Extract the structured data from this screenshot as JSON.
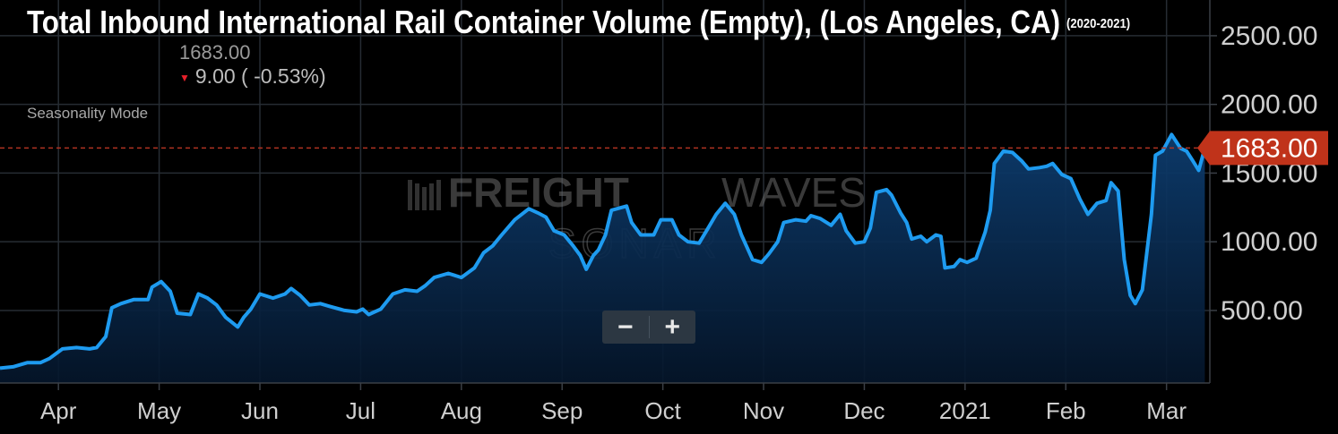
{
  "chart_data": {
    "type": "line",
    "title": "Total Inbound International Rail Container Volume (Empty), (Los Angeles, CA)",
    "period": "(2020-2021)",
    "header_value": "1683.00",
    "change": "9.00 ( -0.53%)",
    "mode": "Seasonality Mode",
    "watermark": {
      "brand_bold": "FREIGHT",
      "brand_light": "WAVES",
      "product": "SONAR"
    },
    "zoom_out": "−",
    "zoom_in": "+",
    "color": "#1e9bf0",
    "last": {
      "value": 1683,
      "label": "1683.00"
    },
    "xlim": [
      3.42,
      15.43
    ],
    "xticks": [
      {
        "value": 4,
        "label": "Apr"
      },
      {
        "value": 5,
        "label": "May"
      },
      {
        "value": 6,
        "label": "Jun"
      },
      {
        "value": 7,
        "label": "Jul"
      },
      {
        "value": 8,
        "label": "Aug"
      },
      {
        "value": 9,
        "label": "Sep"
      },
      {
        "value": 10,
        "label": "Oct"
      },
      {
        "value": 11,
        "label": "Nov"
      },
      {
        "value": 12,
        "label": "Dec"
      },
      {
        "value": 13,
        "label": "2021"
      },
      {
        "value": 14,
        "label": "Feb"
      },
      {
        "value": 15,
        "label": "Mar"
      }
    ],
    "ylim": [
      -28,
      2760
    ],
    "yticks": [
      {
        "value": 500,
        "label": "500.00"
      },
      {
        "value": 1000,
        "label": "1000.00"
      },
      {
        "value": 1500,
        "label": "1500.00"
      },
      {
        "value": 2000,
        "label": "2000.00"
      },
      {
        "value": 2500,
        "label": "2500.00"
      }
    ],
    "grid": true,
    "x": [
      3.42,
      3.55,
      3.69,
      3.82,
      3.91,
      4.04,
      4.18,
      4.31,
      4.38,
      4.47,
      4.53,
      4.62,
      4.75,
      4.89,
      4.93,
      5.02,
      5.11,
      5.18,
      5.31,
      5.39,
      5.48,
      5.57,
      5.66,
      5.78,
      5.84,
      5.91,
      6.0,
      6.13,
      6.25,
      6.31,
      6.4,
      6.49,
      6.6,
      6.69,
      6.84,
      6.96,
      7.02,
      7.08,
      7.2,
      7.32,
      7.44,
      7.56,
      7.64,
      7.73,
      7.87,
      8.0,
      8.13,
      8.22,
      8.31,
      8.4,
      8.53,
      8.67,
      8.76,
      8.84,
      8.92,
      9.02,
      9.11,
      9.18,
      9.24,
      9.31,
      9.36,
      9.43,
      9.49,
      9.64,
      9.69,
      9.78,
      9.91,
      9.98,
      10.09,
      10.16,
      10.25,
      10.36,
      10.45,
      10.53,
      10.62,
      10.71,
      10.78,
      10.89,
      10.98,
      11.05,
      11.14,
      11.2,
      11.32,
      11.42,
      11.47,
      11.56,
      11.67,
      11.76,
      11.82,
      11.91,
      12.0,
      12.06,
      12.12,
      12.22,
      12.27,
      12.36,
      12.42,
      12.47,
      12.56,
      12.62,
      12.71,
      12.76,
      12.8,
      12.89,
      12.95,
      13.02,
      13.11,
      13.2,
      13.25,
      13.29,
      13.38,
      13.47,
      13.56,
      13.63,
      13.74,
      13.81,
      13.87,
      13.96,
      14.05,
      14.14,
      14.22,
      14.31,
      14.4,
      14.45,
      14.52,
      14.58,
      14.64,
      14.69,
      14.76,
      14.85,
      14.89,
      14.96,
      15.05,
      15.14,
      15.2,
      15.26,
      15.32,
      15.38
    ],
    "values": [
      80,
      90,
      120,
      120,
      150,
      220,
      230,
      220,
      230,
      310,
      520,
      550,
      580,
      580,
      670,
      710,
      640,
      480,
      470,
      620,
      590,
      540,
      450,
      380,
      450,
      510,
      620,
      590,
      620,
      660,
      610,
      540,
      550,
      530,
      500,
      490,
      510,
      470,
      510,
      620,
      650,
      640,
      680,
      740,
      770,
      740,
      810,
      920,
      970,
      1050,
      1160,
      1240,
      1210,
      1180,
      1080,
      1050,
      970,
      900,
      800,
      900,
      940,
      1050,
      1230,
      1260,
      1140,
      1050,
      1050,
      1160,
      1160,
      1050,
      1000,
      990,
      1100,
      1200,
      1280,
      1200,
      1050,
      870,
      850,
      910,
      1000,
      1140,
      1160,
      1150,
      1190,
      1170,
      1120,
      1200,
      1080,
      990,
      1000,
      1100,
      1360,
      1380,
      1340,
      1210,
      1140,
      1020,
      1040,
      1000,
      1050,
      1040,
      810,
      820,
      870,
      850,
      880,
      1070,
      1230,
      1570,
      1660,
      1650,
      1590,
      1530,
      1540,
      1550,
      1570,
      1490,
      1460,
      1310,
      1200,
      1280,
      1300,
      1430,
      1370,
      870,
      610,
      550,
      650,
      1200,
      1630,
      1660,
      1780,
      1680,
      1660,
      1590,
      1520,
      1683
    ]
  }
}
